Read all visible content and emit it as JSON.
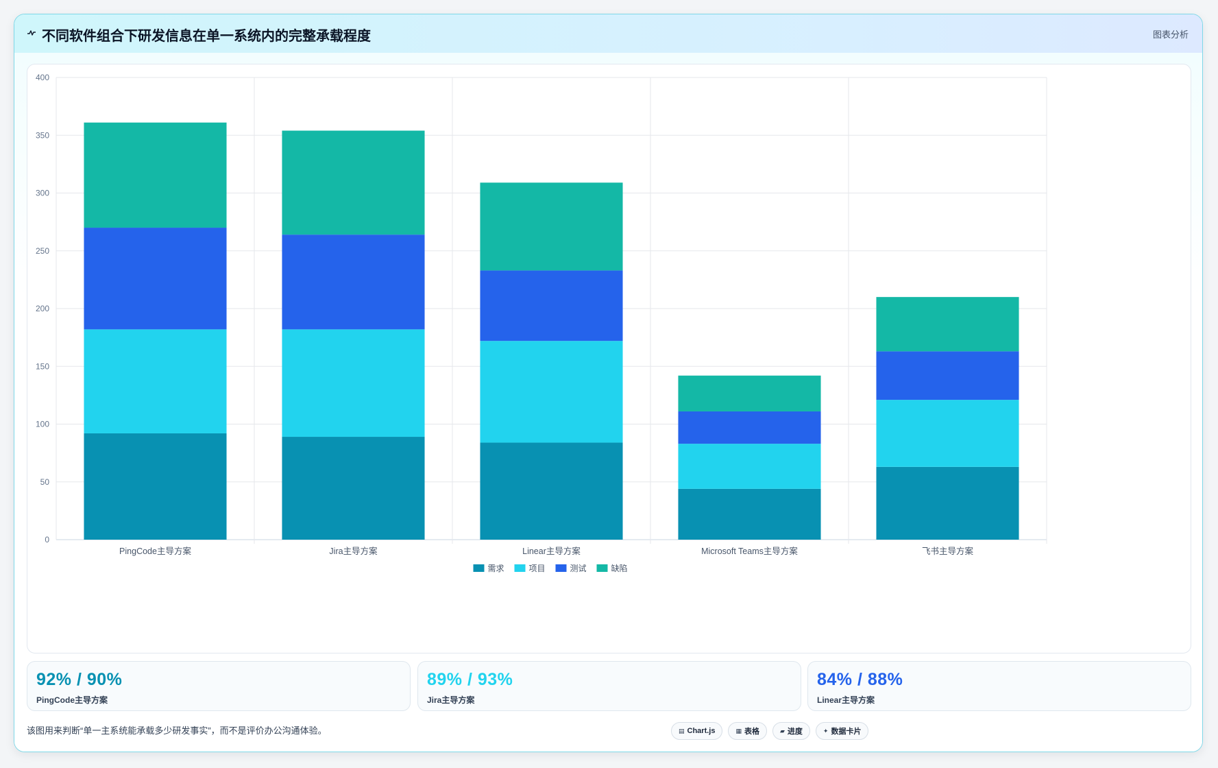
{
  "header": {
    "icon": "pulse-line-icon",
    "title": "不同软件组合下研发信息在单一系统内的完整承载程度",
    "tag": "图表分析"
  },
  "chart_data": {
    "type": "bar",
    "stacked": true,
    "categories": [
      "PingCode主导方案",
      "Jira主导方案",
      "Linear主导方案",
      "Microsoft Teams主导方案",
      "飞书主导方案"
    ],
    "series": [
      {
        "name": "需求",
        "color": "#0891b2",
        "values": [
          92,
          89,
          84,
          44,
          63
        ]
      },
      {
        "name": "项目",
        "color": "#22d3ee",
        "values": [
          90,
          93,
          88,
          39,
          58
        ]
      },
      {
        "name": "测试",
        "color": "#2563eb",
        "values": [
          88,
          82,
          61,
          28,
          42
        ]
      },
      {
        "name": "缺陷",
        "color": "#14b8a6",
        "values": [
          91,
          90,
          76,
          31,
          47
        ]
      }
    ],
    "ylim": [
      0,
      400
    ],
    "yticks": [
      0,
      50,
      100,
      150,
      200,
      250,
      300,
      350,
      400
    ],
    "grid": true,
    "legend": "bottom-center"
  },
  "stats": [
    {
      "value": "92% / 90%",
      "label": "PingCode主导方案",
      "color": "#0891b2"
    },
    {
      "value": "89% / 93%",
      "label": "Jira主导方案",
      "color": "#22d3ee"
    },
    {
      "value": "84% / 88%",
      "label": "Linear主导方案",
      "color": "#2563eb"
    }
  ],
  "note": "该图用来判断“单一主系统能承载多少研发事实”，而不是评价办公沟通体验。",
  "chips": [
    {
      "icon": "chart-icon",
      "glyph": "▤",
      "label": "Chart.js"
    },
    {
      "icon": "table-icon",
      "glyph": "▦",
      "label": "表格"
    },
    {
      "icon": "progress-icon",
      "glyph": "▰",
      "label": "进度"
    },
    {
      "icon": "sparkle-icon",
      "glyph": "✦",
      "label": "数据卡片"
    }
  ]
}
